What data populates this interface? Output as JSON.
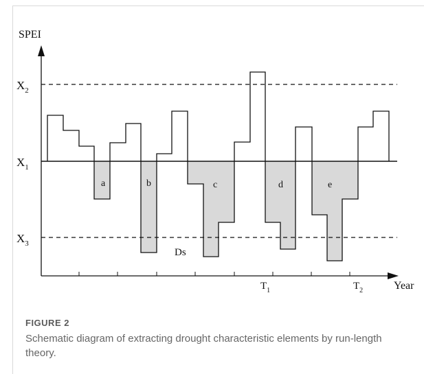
{
  "diagram": {
    "y_axis_title": "SPEI",
    "x_axis_title": "Year",
    "levels": [
      {
        "base": "X",
        "sub": "2",
        "line": "dashed"
      },
      {
        "base": "X",
        "sub": "1",
        "line": "solid"
      },
      {
        "base": "X",
        "sub": "3",
        "line": "dashed"
      }
    ],
    "x_ticks": [
      {
        "base": "T",
        "sub": "1"
      },
      {
        "base": "T",
        "sub": "2"
      }
    ],
    "drought_events": [
      "a",
      "b",
      "c",
      "d",
      "e"
    ],
    "duration_label": "Ds",
    "fill_color": "#d9d9d9"
  },
  "caption": {
    "label": "FIGURE 2",
    "text": "Schematic diagram of extracting drought characteristic elements by run-length theory."
  }
}
